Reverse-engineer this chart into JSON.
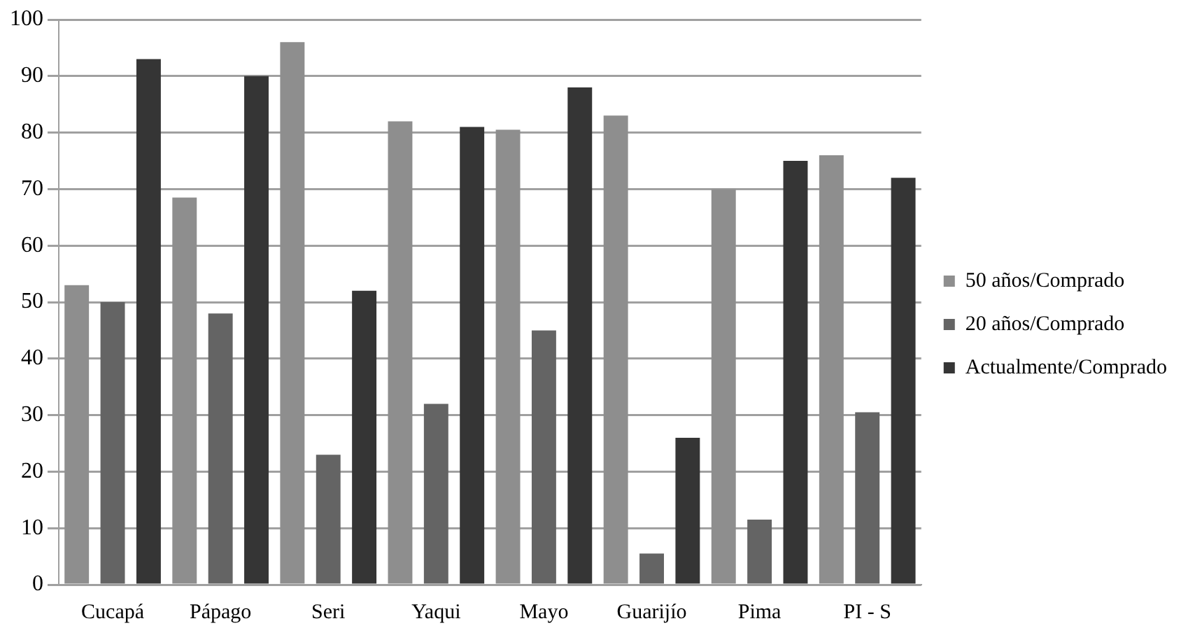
{
  "chart_data": {
    "type": "bar",
    "categories": [
      "Cucapá",
      "Pápago",
      "Seri",
      "Yaqui",
      "Mayo",
      "Guarijío",
      "Pima",
      "PI - S"
    ],
    "series": [
      {
        "name": "50 años/Comprado",
        "color": "#8e8e8e",
        "values": [
          53,
          68.5,
          96,
          82,
          80.5,
          83,
          70,
          76
        ]
      },
      {
        "name": "20 años/Comprado",
        "color": "#646464",
        "values": [
          50,
          48,
          23,
          32,
          45,
          5.5,
          11.5,
          30.5
        ]
      },
      {
        "name": "Actualmente/Comprado",
        "color": "#353535",
        "values": [
          93,
          90,
          52,
          81,
          88,
          26,
          75,
          72
        ]
      }
    ],
    "ylim": [
      0,
      100
    ],
    "yticks": [
      0,
      10,
      20,
      30,
      40,
      50,
      60,
      70,
      80,
      90,
      100
    ],
    "grid": "y",
    "legend": "right"
  }
}
